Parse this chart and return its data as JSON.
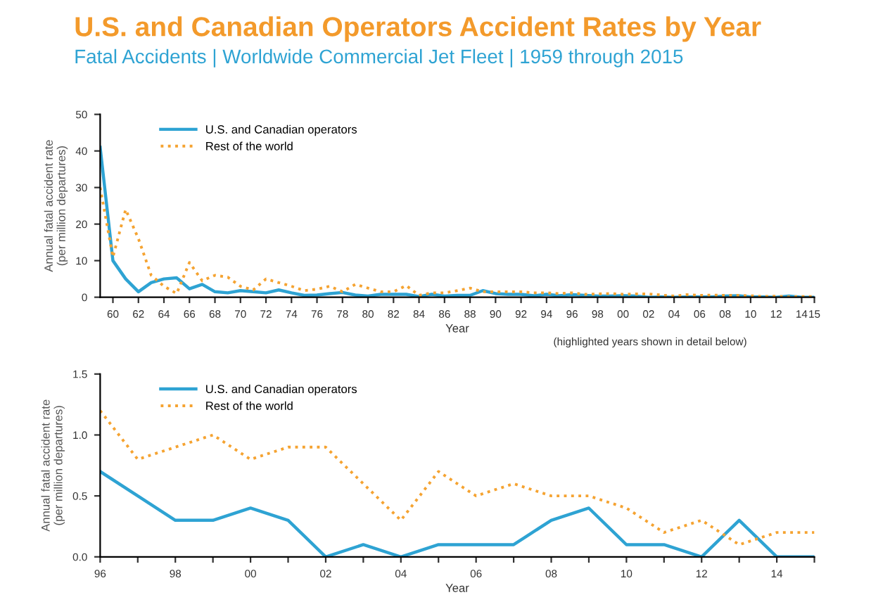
{
  "chart_data": [
    {
      "type": "line",
      "title": "U.S. and Canadian Operators Accident Rates by Year",
      "subtitle": "Fatal Accidents | Worldwide Commercial Jet Fleet | 1959 through 2015",
      "xlabel": "Year",
      "ylabel": "Annual fatal accident rate\n(per million departures)",
      "annotations": [
        "(highlighted years shown in detail below)"
      ],
      "x": [
        1959,
        1960,
        1961,
        1962,
        1963,
        1964,
        1965,
        1966,
        1967,
        1968,
        1969,
        1970,
        1971,
        1972,
        1973,
        1974,
        1975,
        1976,
        1977,
        1978,
        1979,
        1980,
        1981,
        1982,
        1983,
        1984,
        1985,
        1986,
        1987,
        1988,
        1989,
        1990,
        1991,
        1992,
        1993,
        1994,
        1995,
        1996,
        1997,
        1998,
        1999,
        2000,
        2001,
        2002,
        2003,
        2004,
        2005,
        2006,
        2007,
        2008,
        2009,
        2010,
        2011,
        2012,
        2013,
        2014,
        2015
      ],
      "series": [
        {
          "name": "U.S. and Canadian operators",
          "color": "#2ea3d3",
          "line_style": "solid",
          "values": [
            41,
            10,
            5,
            1.5,
            4,
            5,
            5.3,
            2.3,
            3.5,
            1.5,
            1.2,
            1.8,
            1.5,
            1.2,
            2,
            1.2,
            0.5,
            0.6,
            1,
            1.3,
            0.6,
            0.3,
            0.8,
            0.8,
            0.8,
            0.2,
            0.8,
            0.3,
            0.5,
            0.5,
            1.8,
            1,
            0.8,
            0.8,
            0.4,
            0.8,
            0.4,
            0.7,
            0.5,
            0.3,
            0.3,
            0.4,
            0.3,
            0,
            0.1,
            0,
            0.1,
            0.1,
            0.1,
            0.3,
            0.4,
            0.1,
            0.1,
            0,
            0.3,
            0,
            0
          ]
        },
        {
          "name": "Rest of the world",
          "color": "#f5a331",
          "line_style": "dotted",
          "values": [
            30,
            11,
            24,
            16,
            6,
            3,
            1,
            9.5,
            4.5,
            6,
            5.5,
            3,
            2,
            5,
            4,
            3,
            1.8,
            2.2,
            3,
            1.5,
            3.5,
            2.5,
            1.5,
            1.5,
            3.2,
            0.5,
            1.2,
            1.2,
            1.8,
            2.5,
            1.5,
            1.5,
            1.5,
            1.5,
            1.2,
            1.2,
            1,
            1.2,
            0.8,
            0.9,
            1,
            0.8,
            0.9,
            0.9,
            0.6,
            0.3,
            0.7,
            0.5,
            0.6,
            0.5,
            0.5,
            0.4,
            0.2,
            0.3,
            0.1,
            0.2,
            0.2
          ]
        }
      ],
      "xlim": [
        1959,
        2015
      ],
      "xticks": [
        {
          "value": 1960,
          "label": "60"
        },
        {
          "value": 1962,
          "label": "62"
        },
        {
          "value": 1964,
          "label": "64"
        },
        {
          "value": 1966,
          "label": "66"
        },
        {
          "value": 1968,
          "label": "68"
        },
        {
          "value": 1970,
          "label": "70"
        },
        {
          "value": 1972,
          "label": "72"
        },
        {
          "value": 1974,
          "label": "74"
        },
        {
          "value": 1976,
          "label": "76"
        },
        {
          "value": 1978,
          "label": "78"
        },
        {
          "value": 1980,
          "label": "80"
        },
        {
          "value": 1982,
          "label": "82"
        },
        {
          "value": 1984,
          "label": "84"
        },
        {
          "value": 1986,
          "label": "86"
        },
        {
          "value": 1988,
          "label": "88"
        },
        {
          "value": 1990,
          "label": "90"
        },
        {
          "value": 1992,
          "label": "92"
        },
        {
          "value": 1994,
          "label": "94"
        },
        {
          "value": 1996,
          "label": "96"
        },
        {
          "value": 1998,
          "label": "98"
        },
        {
          "value": 2000,
          "label": "00"
        },
        {
          "value": 2002,
          "label": "02"
        },
        {
          "value": 2004,
          "label": "04"
        },
        {
          "value": 2006,
          "label": "06"
        },
        {
          "value": 2008,
          "label": "08"
        },
        {
          "value": 2010,
          "label": "10"
        },
        {
          "value": 2012,
          "label": "12"
        },
        {
          "value": 2014,
          "label": "14"
        },
        {
          "value": 2015,
          "label": "15"
        }
      ],
      "ylim": [
        0,
        50
      ],
      "yticks": [
        0,
        10,
        20,
        30,
        40,
        50
      ],
      "grid": false,
      "legend": "top left"
    },
    {
      "type": "line",
      "xlabel": "Year",
      "ylabel": "Annual fatal accident rate\n(per million departures)",
      "x": [
        1996,
        1997,
        1998,
        1999,
        2000,
        2001,
        2002,
        2003,
        2004,
        2005,
        2006,
        2007,
        2008,
        2009,
        2010,
        2011,
        2012,
        2013,
        2014,
        2015
      ],
      "series": [
        {
          "name": "U.S. and Canadian operators",
          "color": "#2ea3d3",
          "line_style": "solid",
          "values": [
            0.7,
            0.5,
            0.3,
            0.3,
            0.4,
            0.3,
            0,
            0.1,
            0,
            0.1,
            0.1,
            0.1,
            0.3,
            0.4,
            0.1,
            0.1,
            0,
            0.3,
            0,
            0
          ]
        },
        {
          "name": "Rest of the world",
          "color": "#f5a331",
          "line_style": "dotted",
          "values": [
            1.2,
            0.8,
            0.9,
            1,
            0.8,
            0.9,
            0.9,
            0.6,
            0.3,
            0.7,
            0.5,
            0.6,
            0.5,
            0.5,
            0.4,
            0.2,
            0.3,
            0.1,
            0.2,
            0.2
          ]
        }
      ],
      "xlim": [
        1996,
        2015
      ],
      "xticks": [
        {
          "value": 1996,
          "label": "96"
        },
        {
          "value": 1997,
          "label": null
        },
        {
          "value": 1998,
          "label": "98"
        },
        {
          "value": 1999,
          "label": null
        },
        {
          "value": 2000,
          "label": "00"
        },
        {
          "value": 2001,
          "label": null
        },
        {
          "value": 2002,
          "label": "02"
        },
        {
          "value": 2003,
          "label": null
        },
        {
          "value": 2004,
          "label": "04"
        },
        {
          "value": 2005,
          "label": null
        },
        {
          "value": 2006,
          "label": "06"
        },
        {
          "value": 2007,
          "label": null
        },
        {
          "value": 2008,
          "label": "08"
        },
        {
          "value": 2009,
          "label": null
        },
        {
          "value": 2010,
          "label": "10"
        },
        {
          "value": 2011,
          "label": null
        },
        {
          "value": 2012,
          "label": "12"
        },
        {
          "value": 2013,
          "label": null
        },
        {
          "value": 2014,
          "label": "14"
        },
        {
          "value": 2015,
          "label": null
        }
      ],
      "ylim": [
        0,
        1.5
      ],
      "yticks": [
        {
          "value": 0,
          "label": "0.0"
        },
        {
          "value": 0.5,
          "label": "0.5"
        },
        {
          "value": 1,
          "label": "1.0"
        },
        {
          "value": 1.5,
          "label": "1.5"
        }
      ],
      "grid": false,
      "legend": "top left"
    }
  ]
}
